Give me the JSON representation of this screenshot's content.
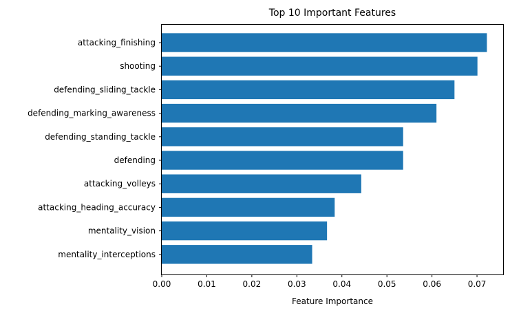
{
  "chart_data": {
    "type": "bar",
    "orientation": "horizontal",
    "title": "Top 10 Important Features",
    "xlabel": "Feature Importance",
    "ylabel": "",
    "xlim": [
      0,
      0.0758
    ],
    "xticks": [
      "0.00",
      "0.01",
      "0.02",
      "0.03",
      "0.04",
      "0.05",
      "0.06",
      "0.07"
    ],
    "categories": [
      "attacking_finishing",
      "shooting",
      "defending_sliding_tackle",
      "defending_marking_awareness",
      "defending_standing_tackle",
      "defending",
      "attacking_volleys",
      "attacking_heading_accuracy",
      "mentality_vision",
      "mentality_interceptions"
    ],
    "values": [
      0.0722,
      0.0701,
      0.065,
      0.061,
      0.0536,
      0.0536,
      0.0443,
      0.0384,
      0.0367,
      0.0334
    ],
    "bar_color": "#1f77b4",
    "grid": false,
    "legend": "none"
  }
}
